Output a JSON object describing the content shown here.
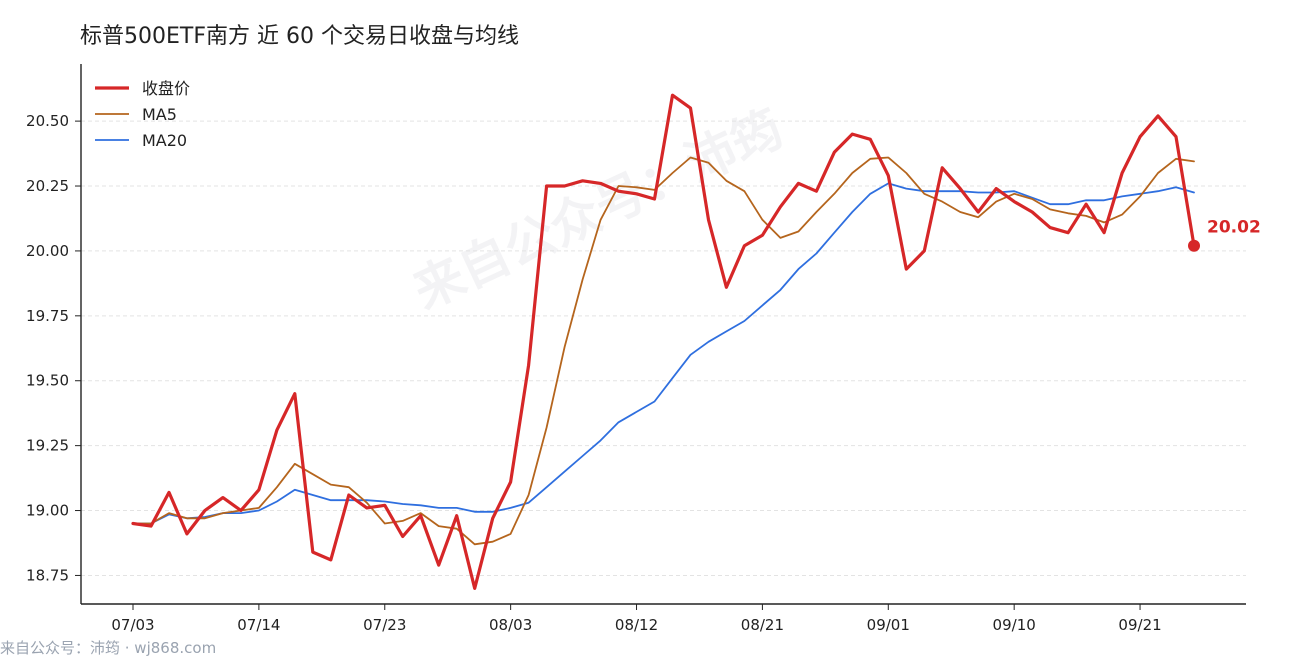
{
  "title": "标普500ETF南方 近 60 个交易日收盘与均线",
  "footer": "来自公众号：沛筠 · wj868.com",
  "watermark": "来自公众号：沛筠",
  "colors": {
    "close": "#d62728",
    "ma5": "#b5651d",
    "ma20": "#2f6fdf",
    "grid": "#e3e3e3",
    "axis": "#222222"
  },
  "chart_data": {
    "type": "line",
    "title": "标普500ETF南方 近 60 个交易日收盘与均线",
    "xlabel": "",
    "ylabel": "",
    "ylim": [
      18.64,
      20.72
    ],
    "yticks": [
      "18.75",
      "19.00",
      "19.25",
      "19.50",
      "19.75",
      "20.00",
      "20.25",
      "20.50"
    ],
    "xticks": [
      {
        "label": "07/03",
        "index": 0
      },
      {
        "label": "07/14",
        "index": 7
      },
      {
        "label": "07/23",
        "index": 14
      },
      {
        "label": "08/03",
        "index": 21
      },
      {
        "label": "08/12",
        "index": 28
      },
      {
        "label": "08/21",
        "index": 35
      },
      {
        "label": "09/01",
        "index": 42
      },
      {
        "label": "09/10",
        "index": 49
      },
      {
        "label": "09/21",
        "index": 56
      }
    ],
    "grid": true,
    "legend": "top-left",
    "series": [
      {
        "name": "收盘价",
        "values": [
          18.95,
          18.94,
          19.07,
          18.91,
          19.0,
          19.05,
          19.0,
          19.08,
          19.31,
          19.45,
          18.84,
          18.81,
          19.06,
          19.01,
          19.02,
          18.9,
          18.98,
          18.79,
          18.98,
          18.7,
          18.97,
          19.11,
          19.56,
          20.25,
          20.25,
          20.27,
          20.26,
          20.23,
          20.22,
          20.2,
          20.6,
          20.55,
          20.12,
          19.86,
          20.02,
          20.06,
          20.17,
          20.26,
          20.23,
          20.38,
          20.45,
          20.43,
          20.29,
          19.93,
          20.0,
          20.32,
          20.24,
          20.15,
          20.24,
          20.19,
          20.15,
          20.09,
          20.07,
          20.18,
          20.07,
          20.3,
          20.44,
          20.52,
          20.44,
          20.02
        ]
      },
      {
        "name": "MA5",
        "values": [
          18.95,
          18.95,
          18.99,
          18.97,
          18.97,
          18.99,
          19.0,
          19.01,
          19.09,
          19.18,
          19.14,
          19.1,
          19.09,
          19.03,
          18.95,
          18.96,
          18.99,
          18.94,
          18.93,
          18.87,
          18.88,
          18.91,
          19.06,
          19.32,
          19.63,
          19.89,
          20.12,
          20.25,
          20.245,
          20.235,
          20.3,
          20.36,
          20.34,
          20.27,
          20.23,
          20.12,
          20.05,
          20.075,
          20.15,
          20.22,
          20.3,
          20.355,
          20.36,
          20.3,
          20.22,
          20.19,
          20.15,
          20.13,
          20.19,
          20.22,
          20.2,
          20.16,
          20.145,
          20.135,
          20.11,
          20.14,
          20.21,
          20.3,
          20.355,
          20.345
        ]
      },
      {
        "name": "MA20",
        "values": [
          18.95,
          18.95,
          18.985,
          18.97,
          18.975,
          18.99,
          18.99,
          19.0,
          19.035,
          19.08,
          19.06,
          19.04,
          19.04,
          19.04,
          19.035,
          19.025,
          19.02,
          19.01,
          19.01,
          18.995,
          18.995,
          19.01,
          19.03,
          19.09,
          19.15,
          19.21,
          19.27,
          19.34,
          19.38,
          19.42,
          19.51,
          19.6,
          19.65,
          19.69,
          19.73,
          19.79,
          19.85,
          19.93,
          19.99,
          20.07,
          20.15,
          20.22,
          20.26,
          20.24,
          20.23,
          20.23,
          20.23,
          20.225,
          20.225,
          20.23,
          20.205,
          20.18,
          20.18,
          20.195,
          20.195,
          20.21,
          20.22,
          20.23,
          20.245,
          20.225
        ]
      }
    ],
    "last_value_label": "20.02"
  }
}
